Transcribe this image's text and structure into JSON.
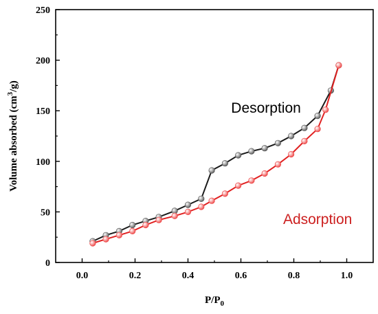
{
  "chart_data": {
    "type": "line",
    "title": "",
    "xlabel": "P/P",
    "xlabel_sub": "0",
    "ylabel": "Volume absorbed (cm",
    "ylabel_sup": "3",
    "ylabel_tail": "/g)",
    "xlim": [
      -0.1,
      1.1
    ],
    "ylim": [
      0,
      250
    ],
    "x_ticks": [
      "0.0",
      "0.2",
      "0.4",
      "0.6",
      "0.8",
      "1.0"
    ],
    "y_ticks": [
      "0",
      "50",
      "100",
      "150",
      "200",
      "250"
    ],
    "grid": false,
    "series": [
      {
        "name": "Desorption",
        "color": "#1a1a1a",
        "marker_color": "#555555",
        "x": [
          0.04,
          0.09,
          0.14,
          0.19,
          0.24,
          0.29,
          0.35,
          0.4,
          0.45,
          0.49,
          0.54,
          0.59,
          0.64,
          0.69,
          0.74,
          0.79,
          0.84,
          0.89,
          0.94,
          0.97
        ],
        "y": [
          21,
          27,
          31,
          37,
          41,
          45,
          51,
          57,
          63,
          91,
          98,
          106,
          110,
          113,
          118,
          125,
          133,
          145,
          170,
          195
        ]
      },
      {
        "name": "Adsorption",
        "color": "#e02020",
        "marker_color": "#ee4444",
        "x": [
          0.04,
          0.09,
          0.14,
          0.19,
          0.24,
          0.29,
          0.35,
          0.4,
          0.45,
          0.49,
          0.54,
          0.59,
          0.64,
          0.69,
          0.74,
          0.79,
          0.84,
          0.89,
          0.92,
          0.97
        ],
        "y": [
          19,
          23,
          27,
          31,
          37,
          42,
          46,
          50,
          55,
          61,
          68,
          76,
          81,
          88,
          97,
          107,
          120,
          132,
          151,
          195
        ]
      }
    ],
    "annotations": [
      {
        "text": "Desorption",
        "color": "#000000",
        "x": 0.695,
        "y": 148
      },
      {
        "text": "Adsorption",
        "color": "#cc1f1f",
        "x": 0.89,
        "y": 38
      }
    ]
  }
}
